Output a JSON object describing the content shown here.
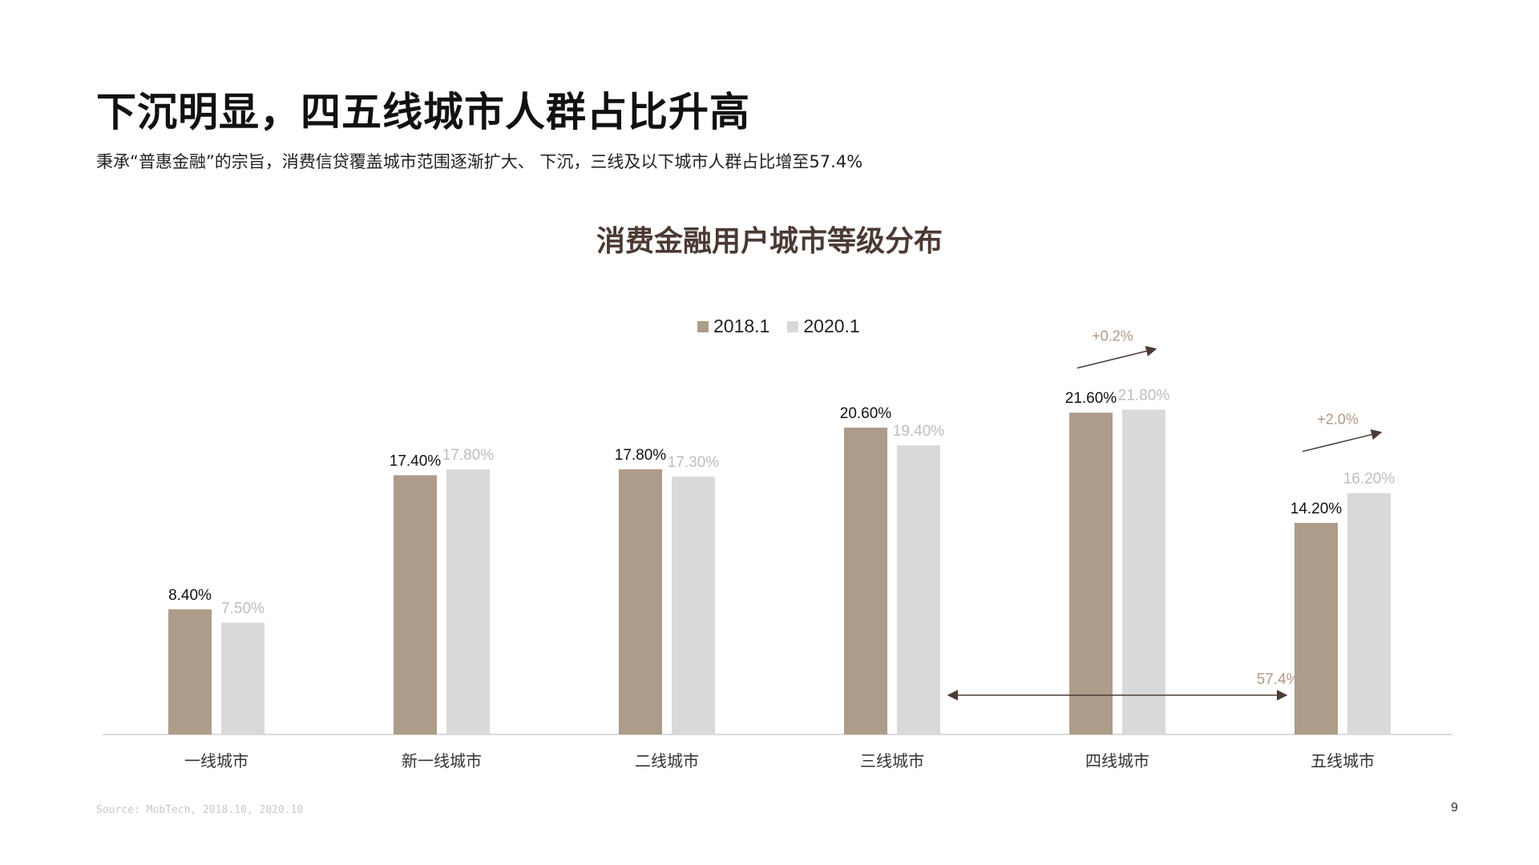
{
  "header": {
    "title": "下沉明显，四五线城市人群占比升高",
    "subtitle": "秉承“普惠金融”的宗旨，消费信贷覆盖城市范围逐渐扩大、 下沉，三线及以下城市人群占比增至57.4%"
  },
  "chart_data": {
    "type": "bar",
    "title": "消费金融用户城市等级分布",
    "categories": [
      "一线城市",
      "新一线城市",
      "二线城市",
      "三线城市",
      "四线城市",
      "五线城市"
    ],
    "series": [
      {
        "name": "2018.1",
        "values": [
          8.4,
          17.4,
          17.8,
          20.6,
          21.6,
          14.2
        ],
        "labels": [
          "8.40%",
          "17.40%",
          "17.80%",
          "20.60%",
          "21.60%",
          "14.20%"
        ],
        "color": "#ad9c89",
        "label_color": "#111111"
      },
      {
        "name": "2020.1",
        "values": [
          7.5,
          17.8,
          17.3,
          19.4,
          21.8,
          16.2
        ],
        "labels": [
          "7.50%",
          "17.80%",
          "17.30%",
          "19.40%",
          "21.80%",
          "16.20%"
        ],
        "color": "#d9d9d9",
        "label_color": "#bdbdbd"
      }
    ],
    "legend_position": "top",
    "grid": false,
    "annotations": [
      {
        "text": "+0.2%",
        "category": "四线城市",
        "type": "trend-arrow"
      },
      {
        "text": "+2.0%",
        "category": "五线城市",
        "type": "trend-arrow"
      },
      {
        "text": "57.4%",
        "from": "三线城市",
        "to": "五线城市",
        "type": "span-arrow"
      }
    ],
    "colors": {
      "accent": "#ad9c89",
      "annotation_text": "#b09a84",
      "arrow": "#4d3c36"
    }
  },
  "footer": {
    "source": "Source: MobTech, 2018.10, 2020.10",
    "page_number": "9"
  }
}
